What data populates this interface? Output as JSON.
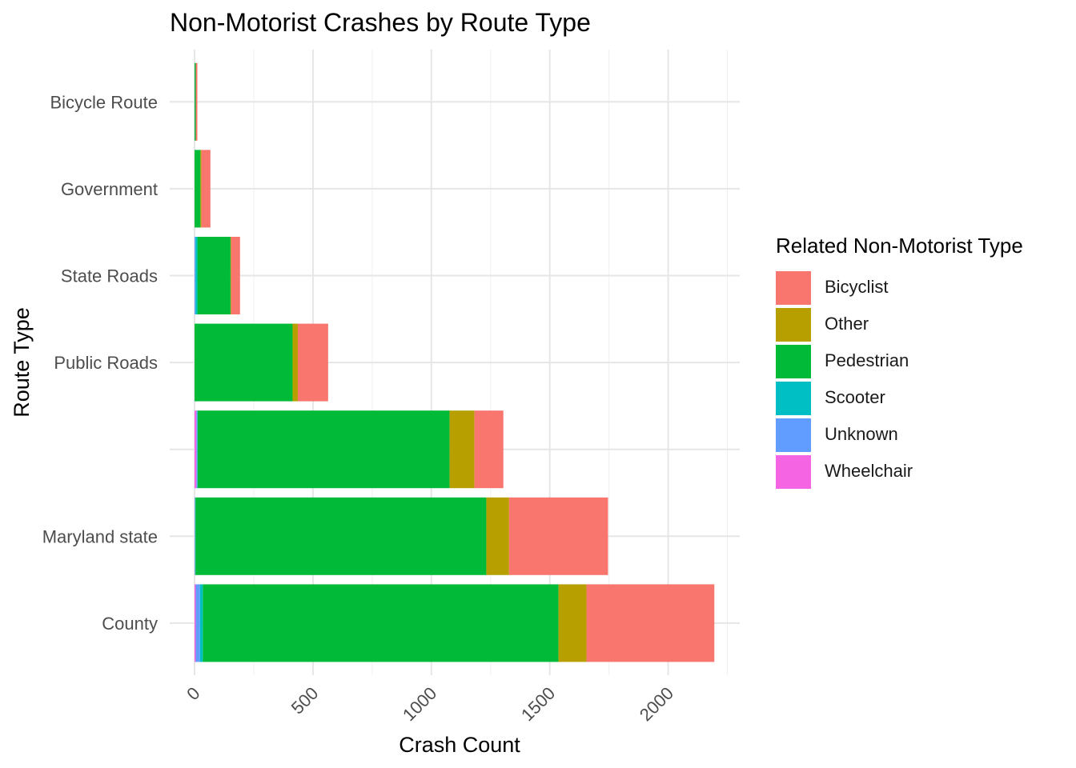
{
  "chart_data": {
    "type": "bar",
    "orientation": "horizontal",
    "stacked": true,
    "title": "Non-Motorist Crashes by Route Type",
    "xlabel": "Crash Count",
    "ylabel": "Route Type",
    "xlim": [
      0,
      2300
    ],
    "xticks": [
      0,
      500,
      1000,
      1500,
      2000
    ],
    "xtick_labels": [
      "0",
      "500",
      "1000",
      "1500",
      "2000"
    ],
    "xtick_label_rotation": 45,
    "grid": true,
    "legend_title": "Related Non-Motorist Type",
    "legend_position": "right",
    "categories": [
      "County",
      "Maryland state",
      "",
      "Public Roads",
      "State Roads",
      "Government",
      "Bicycle Route"
    ],
    "series": [
      {
        "name": "Wheelchair",
        "color": "#F564E3",
        "values": [
          5,
          1,
          8,
          0,
          0,
          0,
          0
        ]
      },
      {
        "name": "Unknown",
        "color": "#619CFF",
        "values": [
          18,
          1,
          4,
          0,
          4,
          0,
          0
        ]
      },
      {
        "name": "Scooter",
        "color": "#00BFC4",
        "values": [
          12,
          2,
          1,
          0,
          8,
          0,
          0
        ]
      },
      {
        "name": "Pedestrian",
        "color": "#00BA38",
        "values": [
          1502,
          1228,
          1064,
          414,
          140,
          25,
          5
        ]
      },
      {
        "name": "Other",
        "color": "#B79F00",
        "values": [
          118,
          96,
          105,
          22,
          2,
          4,
          0
        ]
      },
      {
        "name": "Bicyclist",
        "color": "#F8766D",
        "values": [
          540,
          418,
          122,
          128,
          38,
          38,
          7
        ]
      }
    ]
  }
}
